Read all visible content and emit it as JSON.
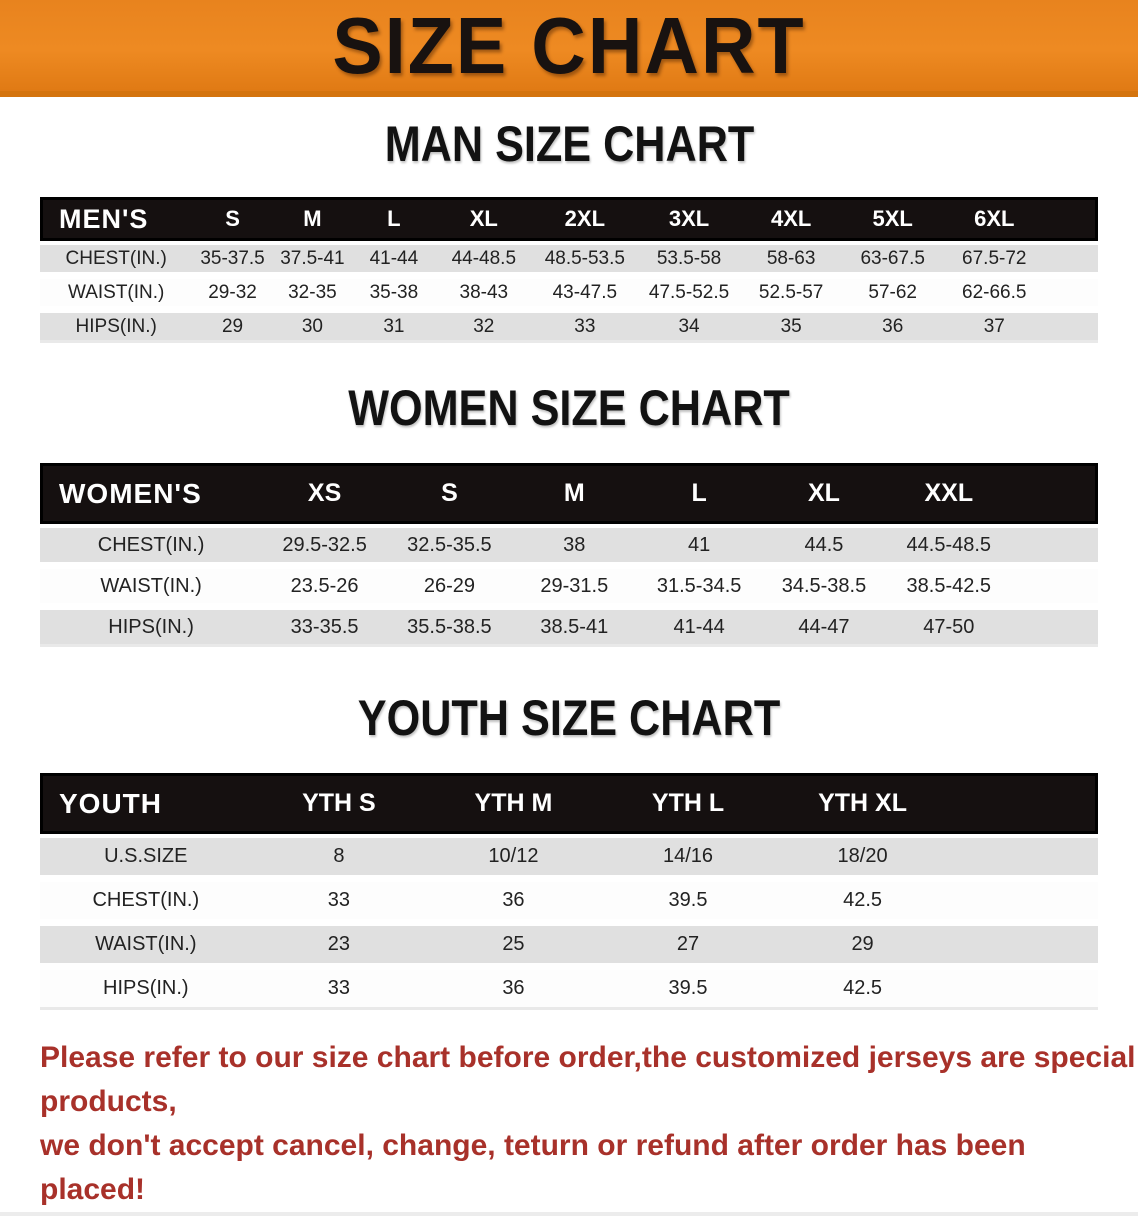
{
  "banner": {
    "title": "SIZE CHART"
  },
  "colors": {
    "accent_orange": "#E8831E",
    "header_black": "#151010",
    "row_gray": "#E0E0E0",
    "disclaimer_red": "#A8312A"
  },
  "sections": {
    "men": {
      "heading": "MAN SIZE CHART"
    },
    "women": {
      "heading": "WOMEN SIZE CHART"
    },
    "youth": {
      "heading": "YOUTH SIZE CHART"
    }
  },
  "tables": {
    "men": {
      "label": "MEN'S",
      "columns": [
        "S",
        "M",
        "L",
        "XL",
        "2XL",
        "3XL",
        "4XL",
        "5XL",
        "6XL"
      ],
      "rows": [
        {
          "label": "CHEST(IN.)",
          "values": [
            "35-37.5",
            "37.5-41",
            "41-44",
            "44-48.5",
            "48.5-53.5",
            "53.5-58",
            "58-63",
            "63-67.5",
            "67.5-72"
          ]
        },
        {
          "label": "WAIST(IN.)",
          "values": [
            "29-32",
            "32-35",
            "35-38",
            "38-43",
            "43-47.5",
            "47.5-52.5",
            "52.5-57",
            "57-62",
            "62-66.5"
          ]
        },
        {
          "label": "HIPS(IN.)",
          "values": [
            "29",
            "30",
            "31",
            "32",
            "33",
            "34",
            "35",
            "36",
            "37"
          ]
        }
      ]
    },
    "women": {
      "label": "WOMEN'S",
      "columns": [
        "XS",
        "S",
        "M",
        "L",
        "XL",
        "XXL"
      ],
      "rows": [
        {
          "label": "CHEST(IN.)",
          "values": [
            "29.5-32.5",
            "32.5-35.5",
            "38",
            "41",
            "44.5",
            "44.5-48.5"
          ]
        },
        {
          "label": "WAIST(IN.)",
          "values": [
            "23.5-26",
            "26-29",
            "29-31.5",
            "31.5-34.5",
            "34.5-38.5",
            "38.5-42.5"
          ]
        },
        {
          "label": "HIPS(IN.)",
          "values": [
            "33-35.5",
            "35.5-38.5",
            "38.5-41",
            "41-44",
            "44-47",
            "47-50"
          ]
        }
      ]
    },
    "youth": {
      "label": "YOUTH",
      "columns": [
        "YTH S",
        "YTH M",
        "YTH L",
        "YTH XL"
      ],
      "rows": [
        {
          "label": "U.S.SIZE",
          "values": [
            "8",
            "10/12",
            "14/16",
            "18/20"
          ]
        },
        {
          "label": "CHEST(IN.)",
          "values": [
            "33",
            "36",
            "39.5",
            "42.5"
          ]
        },
        {
          "label": "WAIST(IN.)",
          "values": [
            "23",
            "25",
            "27",
            "29"
          ]
        },
        {
          "label": "HIPS(IN.)",
          "values": [
            "33",
            "36",
            "39.5",
            "42.5"
          ]
        }
      ]
    }
  },
  "disclaimer": {
    "line1": "Please refer to our size chart before order,the customized jerseys are special products,",
    "line2": "we don't accept cancel, change, teturn or refund after order has been placed!"
  }
}
